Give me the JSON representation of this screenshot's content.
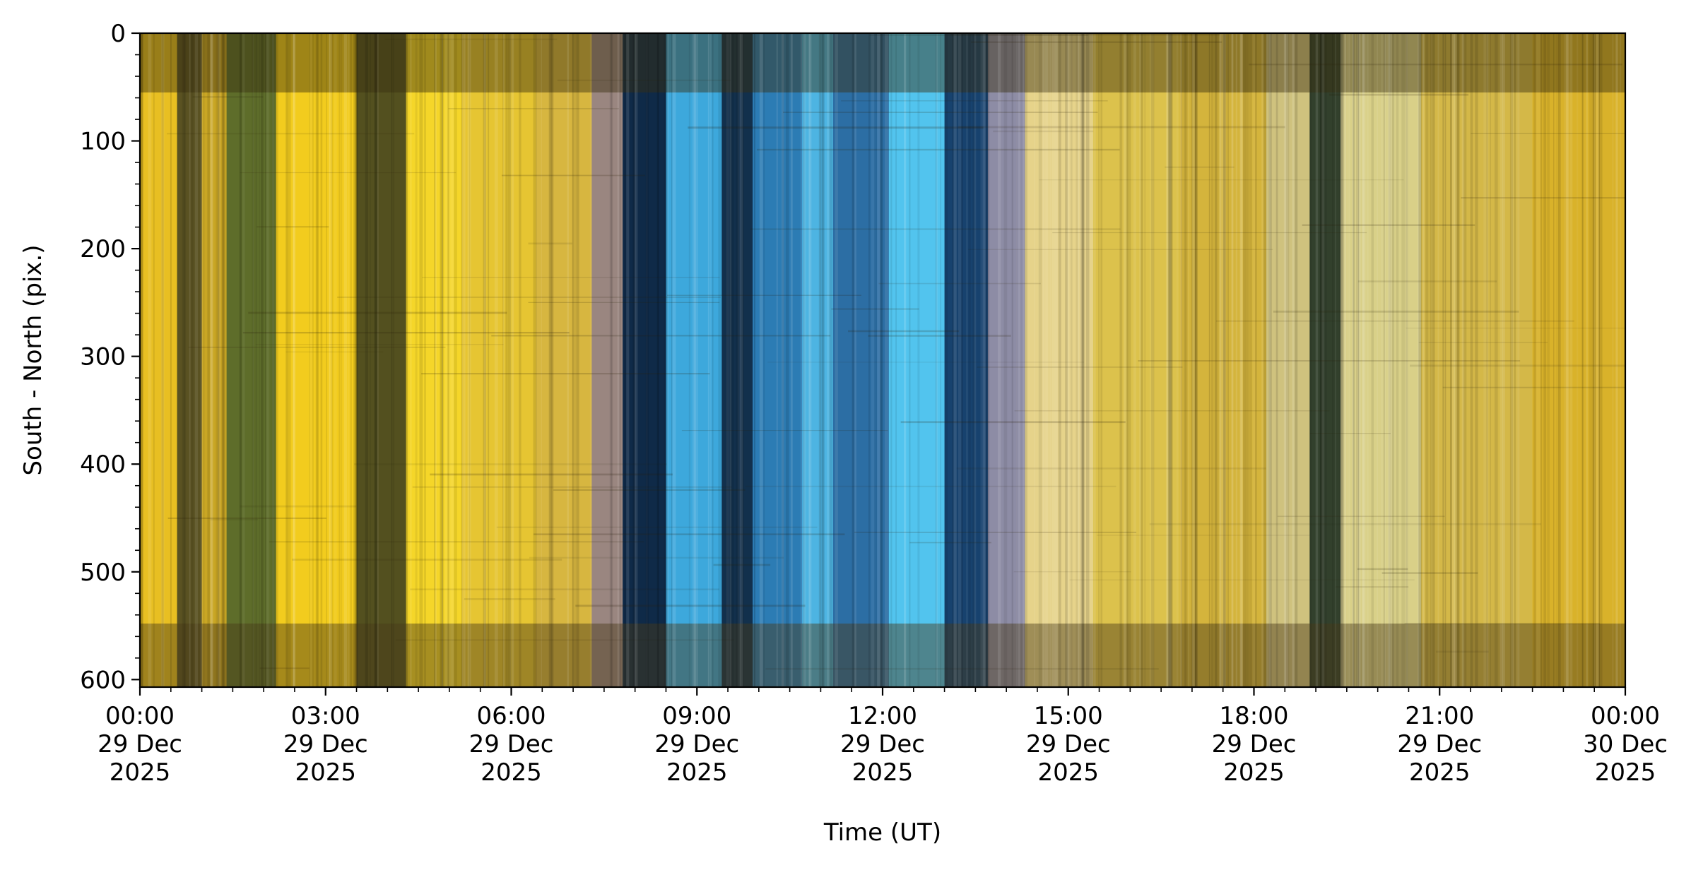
{
  "chart_data": {
    "type": "heatmap",
    "title": "",
    "xlabel": "Time (UT)",
    "ylabel": "South - North (pix.)",
    "y_ticks": [
      0,
      100,
      200,
      300,
      400,
      500,
      600
    ],
    "ylim": [
      607,
      0
    ],
    "x_range_hours": [
      0,
      24
    ],
    "x_ticks": [
      {
        "hour": 0,
        "lines": [
          "00:00",
          "29 Dec",
          "2025"
        ]
      },
      {
        "hour": 3,
        "lines": [
          "03:00",
          "29 Dec",
          "2025"
        ]
      },
      {
        "hour": 6,
        "lines": [
          "06:00",
          "29 Dec",
          "2025"
        ]
      },
      {
        "hour": 9,
        "lines": [
          "09:00",
          "29 Dec",
          "2025"
        ]
      },
      {
        "hour": 12,
        "lines": [
          "12:00",
          "29 Dec",
          "2025"
        ]
      },
      {
        "hour": 15,
        "lines": [
          "15:00",
          "29 Dec",
          "2025"
        ]
      },
      {
        "hour": 18,
        "lines": [
          "18:00",
          "29 Dec",
          "2025"
        ]
      },
      {
        "hour": 21,
        "lines": [
          "21:00",
          "29 Dec",
          "2025"
        ]
      },
      {
        "hour": 24,
        "lines": [
          "00:00",
          "30 Dec",
          "2025"
        ]
      }
    ],
    "grid": false,
    "sky_bands": [
      {
        "start": 0.0,
        "end": 0.6,
        "color": "#e8bf22"
      },
      {
        "start": 0.6,
        "end": 1.0,
        "color": "#5a5222"
      },
      {
        "start": 1.0,
        "end": 1.4,
        "color": "#c9a624"
      },
      {
        "start": 1.4,
        "end": 2.2,
        "color": "#5e6d2a"
      },
      {
        "start": 2.2,
        "end": 3.5,
        "color": "#f2cc1e"
      },
      {
        "start": 3.5,
        "end": 4.3,
        "color": "#53501f"
      },
      {
        "start": 4.3,
        "end": 5.2,
        "color": "#f5d629"
      },
      {
        "start": 5.2,
        "end": 6.4,
        "color": "#e6c532"
      },
      {
        "start": 6.4,
        "end": 7.3,
        "color": "#d7b640"
      },
      {
        "start": 7.3,
        "end": 7.8,
        "color": "#9a8680"
      },
      {
        "start": 7.8,
        "end": 8.5,
        "color": "#0f2a48"
      },
      {
        "start": 8.5,
        "end": 9.4,
        "color": "#3da8dc"
      },
      {
        "start": 9.4,
        "end": 9.9,
        "color": "#12304c"
      },
      {
        "start": 9.9,
        "end": 10.7,
        "color": "#2c7cb4"
      },
      {
        "start": 10.7,
        "end": 11.2,
        "color": "#4db4e2"
      },
      {
        "start": 11.2,
        "end": 12.1,
        "color": "#2c6ea4"
      },
      {
        "start": 12.1,
        "end": 13.0,
        "color": "#52c4ee"
      },
      {
        "start": 13.0,
        "end": 13.7,
        "color": "#17426e"
      },
      {
        "start": 13.7,
        "end": 14.3,
        "color": "#8d8ca5"
      },
      {
        "start": 14.3,
        "end": 15.4,
        "color": "#e6d38a"
      },
      {
        "start": 15.4,
        "end": 16.8,
        "color": "#dcc24c"
      },
      {
        "start": 16.8,
        "end": 18.2,
        "color": "#d4b43c"
      },
      {
        "start": 18.2,
        "end": 18.9,
        "color": "#cfc27e"
      },
      {
        "start": 18.9,
        "end": 19.4,
        "color": "#32402c"
      },
      {
        "start": 19.4,
        "end": 20.7,
        "color": "#d9d088"
      },
      {
        "start": 20.7,
        "end": 22.5,
        "color": "#d4b848"
      },
      {
        "start": 22.5,
        "end": 24.0,
        "color": "#d9b22a"
      }
    ],
    "horizontal_bands": [
      {
        "y_start": 0,
        "y_end": 55,
        "tint": "#3a2e10"
      },
      {
        "y_start": 548,
        "y_end": 607,
        "tint": "#4a3a18"
      }
    ]
  }
}
